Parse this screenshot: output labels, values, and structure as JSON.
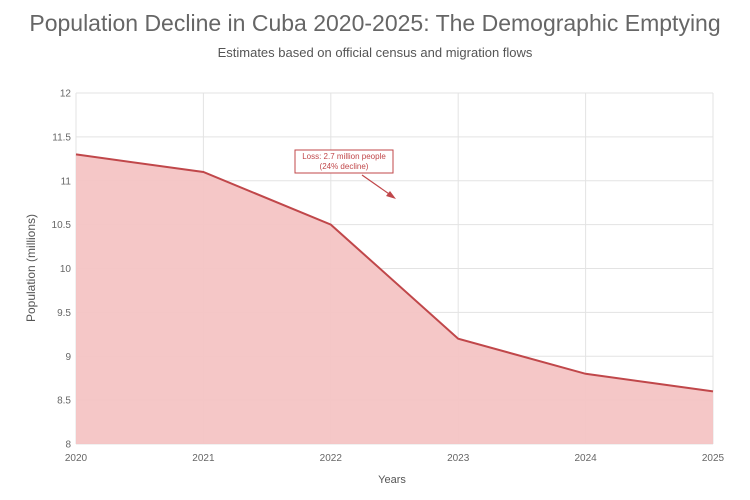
{
  "chart_data": {
    "type": "area",
    "title": "Population Decline in Cuba 2020-2025: The Demographic Emptying",
    "subtitle": "Estimates based on official census and migration flows",
    "xlabel": "Years",
    "ylabel": "Population (millions)",
    "x": [
      2020,
      2021,
      2022,
      2023,
      2024,
      2025
    ],
    "values": [
      11.3,
      11.1,
      10.5,
      9.2,
      8.8,
      8.6
    ],
    "xlim": [
      2020,
      2025
    ],
    "ylim": [
      8,
      12
    ],
    "xticks": [
      "2020",
      "2021",
      "2022",
      "2023",
      "2024",
      "2025"
    ],
    "yticks": [
      "8",
      "8.5",
      "9",
      "9.5",
      "10",
      "10.5",
      "11",
      "11.5",
      "12"
    ],
    "grid": true,
    "annotation": {
      "line1": "Loss: 2.7 million people",
      "line2": "(24% decline)"
    },
    "colors": {
      "line": "#c0474a",
      "fill": "#f4c4c4",
      "grid": "#e3e3e3"
    }
  }
}
